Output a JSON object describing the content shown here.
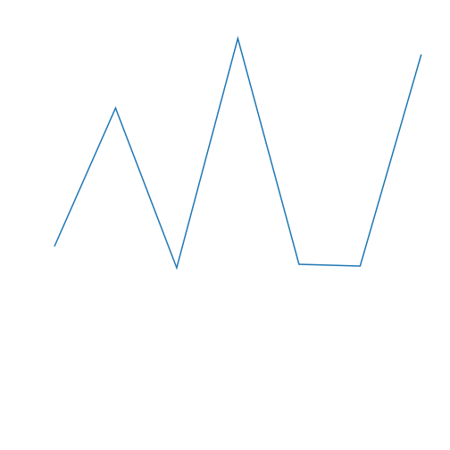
{
  "chart_data": {
    "type": "line",
    "x": [
      0,
      1,
      2,
      3,
      4,
      5,
      6
    ],
    "series": [
      {
        "color": "#1f77b4",
        "values": [
          2.28,
          3.83,
          2.04,
          4.61,
          2.08,
          2.06,
          4.43
        ]
      }
    ],
    "xlim": [
      -0.89,
      6.47
    ],
    "ylim": [
      0,
      5.04
    ],
    "grid": false
  }
}
